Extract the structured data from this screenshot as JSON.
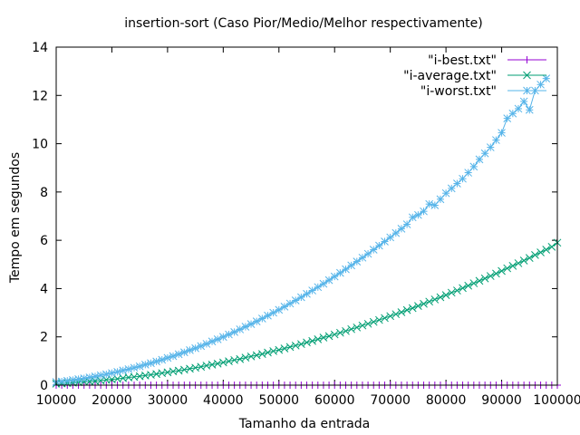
{
  "chart_data": {
    "type": "line",
    "title": "insertion-sort (Caso Pior/Medio/Melhor respectivamente)",
    "xlabel": "Tamanho da entrada",
    "ylabel": "Tempo em segundos",
    "xlim": [
      10000,
      100000
    ],
    "ylim": [
      0,
      14
    ],
    "xticks": [
      "10000",
      "20000",
      "30000",
      "40000",
      "50000",
      "60000",
      "70000",
      "80000",
      "90000",
      "100000"
    ],
    "yticks": [
      "0",
      "2",
      "4",
      "6",
      "8",
      "10",
      "12",
      "14"
    ],
    "legend_position": "top-right",
    "grid": false,
    "series": [
      {
        "name": "\"i-best.txt\"",
        "color": "#9400d3",
        "marker": "plus",
        "points": [
          [
            10000,
            0.0
          ],
          [
            11000,
            0.0
          ],
          [
            12000,
            0.0
          ],
          [
            13000,
            0.0
          ],
          [
            14000,
            0.0
          ],
          [
            15000,
            0.0
          ],
          [
            16000,
            0.0
          ],
          [
            17000,
            0.0
          ],
          [
            18000,
            0.0
          ],
          [
            19000,
            0.0
          ],
          [
            20000,
            0.0
          ],
          [
            21000,
            0.0
          ],
          [
            22000,
            0.0
          ],
          [
            23000,
            0.0
          ],
          [
            24000,
            0.0
          ],
          [
            25000,
            0.0
          ],
          [
            26000,
            0.0
          ],
          [
            27000,
            0.0
          ],
          [
            28000,
            0.0
          ],
          [
            29000,
            0.0
          ],
          [
            30000,
            0.0
          ],
          [
            31000,
            0.0
          ],
          [
            32000,
            0.0
          ],
          [
            33000,
            0.0
          ],
          [
            34000,
            0.0
          ],
          [
            35000,
            0.0
          ],
          [
            36000,
            0.0
          ],
          [
            37000,
            0.0
          ],
          [
            38000,
            0.0
          ],
          [
            39000,
            0.0
          ],
          [
            40000,
            0.0
          ],
          [
            41000,
            0.0
          ],
          [
            42000,
            0.0
          ],
          [
            43000,
            0.0
          ],
          [
            44000,
            0.0
          ],
          [
            45000,
            0.0
          ],
          [
            46000,
            0.0
          ],
          [
            47000,
            0.0
          ],
          [
            48000,
            0.0
          ],
          [
            49000,
            0.0
          ],
          [
            50000,
            0.0
          ],
          [
            51000,
            0.0
          ],
          [
            52000,
            0.0
          ],
          [
            53000,
            0.0
          ],
          [
            54000,
            0.0
          ],
          [
            55000,
            0.0
          ],
          [
            56000,
            0.0
          ],
          [
            57000,
            0.0
          ],
          [
            58000,
            0.0
          ],
          [
            59000,
            0.0
          ],
          [
            60000,
            0.0
          ],
          [
            61000,
            0.0
          ],
          [
            62000,
            0.0
          ],
          [
            63000,
            0.0
          ],
          [
            64000,
            0.0
          ],
          [
            65000,
            0.0
          ],
          [
            66000,
            0.0
          ],
          [
            67000,
            0.0
          ],
          [
            68000,
            0.0
          ],
          [
            69000,
            0.0
          ],
          [
            70000,
            0.0
          ],
          [
            71000,
            0.0
          ],
          [
            72000,
            0.0
          ],
          [
            73000,
            0.0
          ],
          [
            74000,
            0.0
          ],
          [
            75000,
            0.0
          ],
          [
            76000,
            0.0
          ],
          [
            77000,
            0.0
          ],
          [
            78000,
            0.0
          ],
          [
            79000,
            0.0
          ],
          [
            80000,
            0.0
          ],
          [
            81000,
            0.0
          ],
          [
            82000,
            0.0
          ],
          [
            83000,
            0.0
          ],
          [
            84000,
            0.0
          ],
          [
            85000,
            0.0
          ],
          [
            86000,
            0.0
          ],
          [
            87000,
            0.0
          ],
          [
            88000,
            0.0
          ],
          [
            89000,
            0.0
          ],
          [
            90000,
            0.0
          ],
          [
            91000,
            0.0
          ],
          [
            92000,
            0.0
          ],
          [
            93000,
            0.0
          ],
          [
            94000,
            0.0
          ],
          [
            95000,
            0.0
          ],
          [
            96000,
            0.0
          ],
          [
            97000,
            0.0
          ],
          [
            98000,
            0.0
          ],
          [
            99000,
            0.0
          ],
          [
            100000,
            0.0
          ]
        ]
      },
      {
        "name": "\"i-average.txt\"",
        "color": "#009e73",
        "marker": "cross",
        "points": [
          [
            10000,
            0.06
          ],
          [
            11000,
            0.07
          ],
          [
            12000,
            0.09
          ],
          [
            13000,
            0.1
          ],
          [
            14000,
            0.12
          ],
          [
            15000,
            0.14
          ],
          [
            16000,
            0.15
          ],
          [
            17000,
            0.17
          ],
          [
            18000,
            0.19
          ],
          [
            19000,
            0.22
          ],
          [
            20000,
            0.24
          ],
          [
            21000,
            0.26
          ],
          [
            22000,
            0.29
          ],
          [
            23000,
            0.32
          ],
          [
            24000,
            0.34
          ],
          [
            25000,
            0.37
          ],
          [
            26000,
            0.4
          ],
          [
            27000,
            0.43
          ],
          [
            28000,
            0.46
          ],
          [
            29000,
            0.5
          ],
          [
            30000,
            0.53
          ],
          [
            31000,
            0.57
          ],
          [
            32000,
            0.6
          ],
          [
            33000,
            0.64
          ],
          [
            34000,
            0.68
          ],
          [
            35000,
            0.72
          ],
          [
            36000,
            0.76
          ],
          [
            37000,
            0.81
          ],
          [
            38000,
            0.85
          ],
          [
            39000,
            0.89
          ],
          [
            40000,
            0.94
          ],
          [
            41000,
            0.99
          ],
          [
            42000,
            1.04
          ],
          [
            43000,
            1.08
          ],
          [
            44000,
            1.14
          ],
          [
            45000,
            1.19
          ],
          [
            46000,
            1.24
          ],
          [
            47000,
            1.29
          ],
          [
            48000,
            1.35
          ],
          [
            49000,
            1.41
          ],
          [
            50000,
            1.46
          ],
          [
            51000,
            1.52
          ],
          [
            52000,
            1.58
          ],
          [
            53000,
            1.64
          ],
          [
            54000,
            1.7
          ],
          [
            55000,
            1.77
          ],
          [
            56000,
            1.83
          ],
          [
            57000,
            1.9
          ],
          [
            58000,
            1.97
          ],
          [
            59000,
            2.03
          ],
          [
            60000,
            2.1
          ],
          [
            61000,
            2.17
          ],
          [
            62000,
            2.24
          ],
          [
            63000,
            2.32
          ],
          [
            64000,
            2.39
          ],
          [
            65000,
            2.47
          ],
          [
            66000,
            2.54
          ],
          [
            67000,
            2.62
          ],
          [
            68000,
            2.7
          ],
          [
            69000,
            2.78
          ],
          [
            70000,
            2.86
          ],
          [
            71000,
            2.94
          ],
          [
            72000,
            3.02
          ],
          [
            73000,
            3.11
          ],
          [
            74000,
            3.19
          ],
          [
            75000,
            3.28
          ],
          [
            76000,
            3.37
          ],
          [
            77000,
            3.46
          ],
          [
            78000,
            3.55
          ],
          [
            79000,
            3.64
          ],
          [
            80000,
            3.73
          ],
          [
            81000,
            3.83
          ],
          [
            82000,
            3.92
          ],
          [
            83000,
            4.02
          ],
          [
            84000,
            4.12
          ],
          [
            85000,
            4.22
          ],
          [
            86000,
            4.32
          ],
          [
            87000,
            4.42
          ],
          [
            88000,
            4.52
          ],
          [
            89000,
            4.62
          ],
          [
            90000,
            4.73
          ],
          [
            91000,
            4.84
          ],
          [
            92000,
            4.94
          ],
          [
            93000,
            5.05
          ],
          [
            94000,
            5.16
          ],
          [
            95000,
            5.27
          ],
          [
            96000,
            5.39
          ],
          [
            97000,
            5.5
          ],
          [
            98000,
            5.61
          ],
          [
            99000,
            5.73
          ],
          [
            100000,
            5.9
          ]
        ]
      },
      {
        "name": "\"i-worst.txt\"",
        "color": "#56b4e9",
        "marker": "star",
        "points": [
          [
            10000,
            0.13
          ],
          [
            11000,
            0.15
          ],
          [
            12000,
            0.18
          ],
          [
            13000,
            0.21
          ],
          [
            14000,
            0.25
          ],
          [
            15000,
            0.28
          ],
          [
            16000,
            0.32
          ],
          [
            17000,
            0.36
          ],
          [
            18000,
            0.41
          ],
          [
            19000,
            0.45
          ],
          [
            20000,
            0.5
          ],
          [
            21000,
            0.55
          ],
          [
            22000,
            0.61
          ],
          [
            23000,
            0.66
          ],
          [
            24000,
            0.72
          ],
          [
            25000,
            0.78
          ],
          [
            26000,
            0.85
          ],
          [
            27000,
            0.91
          ],
          [
            28000,
            0.98
          ],
          [
            29000,
            1.05
          ],
          [
            30000,
            1.13
          ],
          [
            31000,
            1.2
          ],
          [
            32000,
            1.28
          ],
          [
            33000,
            1.36
          ],
          [
            34000,
            1.45
          ],
          [
            35000,
            1.53
          ],
          [
            36000,
            1.62
          ],
          [
            37000,
            1.71
          ],
          [
            38000,
            1.81
          ],
          [
            39000,
            1.9
          ],
          [
            40000,
            2.0
          ],
          [
            41000,
            2.1
          ],
          [
            42000,
            2.2
          ],
          [
            43000,
            2.31
          ],
          [
            44000,
            2.42
          ],
          [
            45000,
            2.53
          ],
          [
            46000,
            2.64
          ],
          [
            47000,
            2.76
          ],
          [
            48000,
            2.88
          ],
          [
            49000,
            3.0
          ],
          [
            50000,
            3.12
          ],
          [
            51000,
            3.25
          ],
          [
            52000,
            3.38
          ],
          [
            53000,
            3.51
          ],
          [
            54000,
            3.64
          ],
          [
            55000,
            3.78
          ],
          [
            56000,
            3.92
          ],
          [
            57000,
            4.06
          ],
          [
            58000,
            4.2
          ],
          [
            59000,
            4.35
          ],
          [
            60000,
            4.5
          ],
          [
            61000,
            4.65
          ],
          [
            62000,
            4.8
          ],
          [
            63000,
            4.96
          ],
          [
            64000,
            5.12
          ],
          [
            65000,
            5.28
          ],
          [
            66000,
            5.44
          ],
          [
            67000,
            5.61
          ],
          [
            68000,
            5.78
          ],
          [
            69000,
            5.95
          ],
          [
            70000,
            6.12
          ],
          [
            71000,
            6.3
          ],
          [
            72000,
            6.48
          ],
          [
            73000,
            6.66
          ],
          [
            74000,
            6.95
          ],
          [
            75000,
            7.05
          ],
          [
            76000,
            7.2
          ],
          [
            77000,
            7.5
          ],
          [
            78000,
            7.45
          ],
          [
            79000,
            7.7
          ],
          [
            80000,
            7.95
          ],
          [
            81000,
            8.15
          ],
          [
            82000,
            8.35
          ],
          [
            83000,
            8.55
          ],
          [
            84000,
            8.8
          ],
          [
            85000,
            9.05
          ],
          [
            86000,
            9.35
          ],
          [
            87000,
            9.6
          ],
          [
            88000,
            9.85
          ],
          [
            89000,
            10.15
          ],
          [
            90000,
            10.45
          ],
          [
            91000,
            11.05
          ],
          [
            92000,
            11.25
          ],
          [
            93000,
            11.45
          ],
          [
            94000,
            11.75
          ],
          [
            95000,
            11.4
          ],
          [
            96000,
            12.2
          ],
          [
            97000,
            12.45
          ],
          [
            98000,
            12.7
          ]
        ]
      }
    ]
  }
}
